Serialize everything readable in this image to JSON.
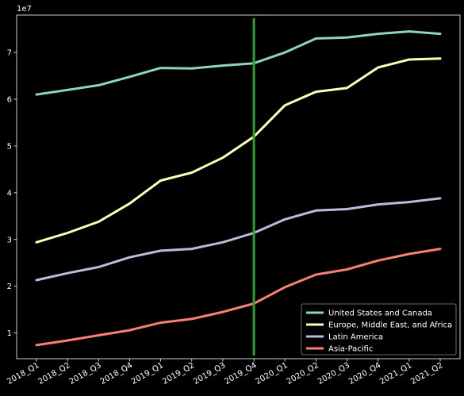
{
  "chart_data": {
    "type": "line",
    "title": "",
    "xlabel": "",
    "ylabel": "",
    "y_scale_label": "1e7",
    "categories": [
      "2018_Q1",
      "2018_Q2",
      "2018_Q3",
      "2018_Q4",
      "2019_Q1",
      "2019_Q2",
      "2019_Q3",
      "2019_Q4",
      "2020_Q1",
      "2020_Q2",
      "2020_Q3",
      "2020_Q4",
      "2021_Q1",
      "2021_Q2"
    ],
    "ylim": [
      0.45,
      7.8
    ],
    "yticks": [
      1,
      2,
      3,
      4,
      5,
      6,
      7
    ],
    "ytick_labels": [
      "1",
      "2",
      "3",
      "4",
      "5",
      "6",
      "7"
    ],
    "grid": false,
    "legend_position": "lower-right",
    "vline": {
      "category": "2019_Q4",
      "color": "#2ca02c"
    },
    "series": [
      {
        "name": "United States and Canada",
        "color": "#8dd3c7",
        "values": [
          6.1,
          6.2,
          6.3,
          6.48,
          6.67,
          6.66,
          6.72,
          6.77,
          7.0,
          7.3,
          7.32,
          7.4,
          7.45,
          7.4
        ]
      },
      {
        "name": "Europe, Middle East, and Africa",
        "color": "#ffffb3",
        "values": [
          2.94,
          3.14,
          3.38,
          3.77,
          4.26,
          4.43,
          4.75,
          5.2,
          5.87,
          6.16,
          6.24,
          6.68,
          6.85,
          6.87
        ]
      },
      {
        "name": "Latin America",
        "color": "#bebada",
        "values": [
          2.13,
          2.28,
          2.41,
          2.62,
          2.76,
          2.8,
          2.94,
          3.14,
          3.43,
          3.62,
          3.65,
          3.75,
          3.8,
          3.88
        ]
      },
      {
        "name": "Asia-Pacific",
        "color": "#fa8072",
        "values": [
          0.74,
          0.84,
          0.95,
          1.06,
          1.22,
          1.3,
          1.45,
          1.63,
          1.98,
          2.25,
          2.36,
          2.55,
          2.69,
          2.8
        ]
      }
    ]
  }
}
